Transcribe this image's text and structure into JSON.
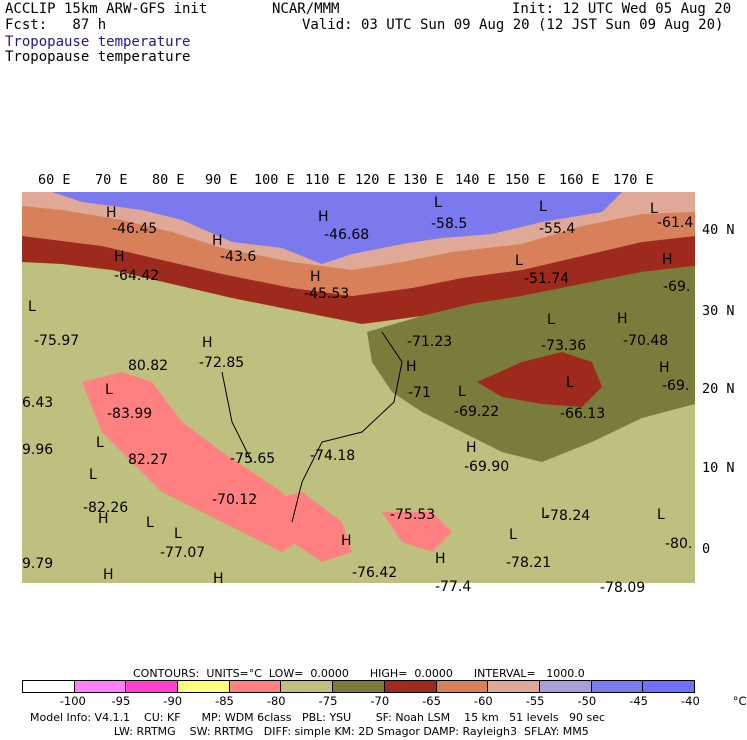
{
  "header": {
    "model": "ACCLIP 15km ARW-GFS init",
    "forecast": "Fcst:   87 h",
    "org": "NCAR/MMM",
    "init": "Init: 12 UTC Wed 05 Aug 20",
    "valid": "Valid: 03 UTC Sun 09 Aug 20 (12 JST Sun 09 Aug 20)",
    "field1": "Tropopause temperature",
    "field2": "Tropopause temperature"
  },
  "lon_labels": [
    "60 E",
    "70 E",
    "80 E",
    "90 E",
    "100 E",
    "110 E",
    "120 E",
    "130 E",
    "140 E",
    "150 E",
    "160 E",
    "170 E"
  ],
  "lat_labels": [
    "40 N",
    "30 N",
    "20 N",
    "10 N",
    "0"
  ],
  "map_labels": [
    {
      "t": "H"
    },
    {
      "t": "-46.45"
    },
    {
      "t": "H"
    },
    {
      "t": "-46.68"
    },
    {
      "t": "L"
    },
    {
      "t": "-58.5"
    },
    {
      "t": "L"
    },
    {
      "t": "-55.4"
    },
    {
      "t": "L"
    },
    {
      "t": "-61.4"
    },
    {
      "t": "H"
    },
    {
      "t": "-43.6"
    },
    {
      "t": "H"
    },
    {
      "t": "-64.42"
    },
    {
      "t": "H"
    },
    {
      "t": "-45.53"
    },
    {
      "t": "L"
    },
    {
      "t": "-51.74"
    },
    {
      "t": "H"
    },
    {
      "t": "-69."
    },
    {
      "t": "L"
    },
    {
      "t": "-75.97"
    },
    {
      "t": "H"
    },
    {
      "t": "-72.85"
    },
    {
      "t": "80.82"
    },
    {
      "t": "-71.23"
    },
    {
      "t": "L"
    },
    {
      "t": "-73.36"
    },
    {
      "t": "H"
    },
    {
      "t": "-70.48"
    },
    {
      "t": "H"
    },
    {
      "t": "-69."
    },
    {
      "t": "H"
    },
    {
      "t": "-71"
    },
    {
      "t": "L"
    },
    {
      "t": "-83.99"
    },
    {
      "t": "L"
    },
    {
      "t": "-69.22"
    },
    {
      "t": "L"
    },
    {
      "t": "-66.13"
    },
    {
      "t": "6.43"
    },
    {
      "t": "L"
    },
    {
      "t": "82.27"
    },
    {
      "t": "-75.65"
    },
    {
      "t": "-74.18"
    },
    {
      "t": "H"
    },
    {
      "t": "-69.90"
    },
    {
      "t": "9.96"
    },
    {
      "t": "L"
    },
    {
      "t": "-82.26"
    },
    {
      "t": "-70.12"
    },
    {
      "t": "L"
    },
    {
      "t": "H"
    },
    {
      "t": "-75.53"
    },
    {
      "t": "L"
    },
    {
      "t": "-78.24"
    },
    {
      "t": "L"
    },
    {
      "t": "-80."
    },
    {
      "t": "L"
    },
    {
      "t": "-77.07"
    },
    {
      "t": "L"
    },
    {
      "t": "-78.21"
    },
    {
      "t": "9.79"
    },
    {
      "t": "H"
    },
    {
      "t": "-76.42"
    },
    {
      "t": "H"
    },
    {
      "t": "-77.4"
    },
    {
      "t": "H"
    },
    {
      "t": "H"
    },
    {
      "t": "-78.09"
    }
  ],
  "contours": {
    "label": "CONTOURS:  UNITS=°C  LOW=  0.0000      HIGH=  0.0000      INTERVAL=   1000.0"
  },
  "legend": {
    "colors": [
      "#ffffff",
      "#ff80ff",
      "#ff40d0",
      "#ffff80",
      "#ff8080",
      "#bec07f",
      "#7a7c3c",
      "#9e2a1e",
      "#d8805a",
      "#e0a896",
      "#a89ed8",
      "#7a7aee",
      "#7070ff"
    ],
    "values": [
      "-100",
      "-95",
      "-90",
      "-85",
      "-80",
      "-75",
      "-70",
      "-65",
      "-60",
      "-55",
      "-50",
      "-45",
      "-40",
      "°C"
    ]
  },
  "footer": {
    "line1": "Model Info: V4.1.1    CU: KF      MP: WDM 6class   PBL: YSU       SF: Noah LSM    15 km   51 levels   90 sec",
    "line2": "                        LW: RRTMG    SW: RRTMG   DIFF: simple KM: 2D Smagor DAMP: Rayleigh3  SFLAY: MM5"
  }
}
